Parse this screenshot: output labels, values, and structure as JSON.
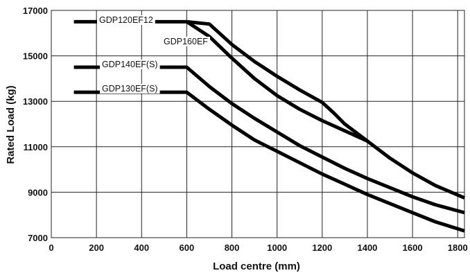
{
  "chart_data": {
    "type": "line",
    "xlabel": "Load centre (mm)",
    "ylabel": "Rated Load (kg)",
    "xlim": [
      0,
      1830
    ],
    "ylim": [
      7000,
      17000
    ],
    "xticks": [
      0,
      200,
      400,
      600,
      800,
      1000,
      1200,
      1400,
      1600,
      1800
    ],
    "yticks": [
      7000,
      9000,
      11000,
      13000,
      15000,
      17000
    ],
    "grid": true,
    "series": [
      {
        "name": "GDP120EF12",
        "x": [
          100,
          600,
          700,
          800,
          900,
          1000,
          1100,
          1200,
          1250,
          1300,
          1400,
          1500,
          1600,
          1700,
          1830
        ],
        "y": [
          16500,
          16500,
          16400,
          15500,
          14750,
          14100,
          13500,
          12950,
          12500,
          12000,
          11250,
          10500,
          9850,
          9300,
          8750
        ]
      },
      {
        "name": "GDP160EF",
        "x": [
          600,
          700,
          800,
          900,
          1000,
          1100,
          1200,
          1300,
          1400
        ],
        "y": [
          16500,
          15850,
          14900,
          14000,
          13250,
          12650,
          12150,
          11700,
          11250
        ]
      },
      {
        "name": "GDP140EF(S)",
        "x": [
          100,
          600,
          700,
          800,
          900,
          1000,
          1100,
          1200,
          1300,
          1400,
          1500,
          1600,
          1700,
          1830
        ],
        "y": [
          14500,
          14500,
          13650,
          12900,
          12250,
          11650,
          11050,
          10550,
          10050,
          9600,
          9200,
          8800,
          8450,
          8100
        ]
      },
      {
        "name": "GDP130EF(S)",
        "x": [
          100,
          600,
          700,
          800,
          900,
          1000,
          1100,
          1200,
          1300,
          1400,
          1500,
          1600,
          1700,
          1830
        ],
        "y": [
          13400,
          13400,
          12650,
          11950,
          11300,
          10800,
          10300,
          9800,
          9350,
          8900,
          8500,
          8100,
          7700,
          7300
        ]
      }
    ]
  }
}
